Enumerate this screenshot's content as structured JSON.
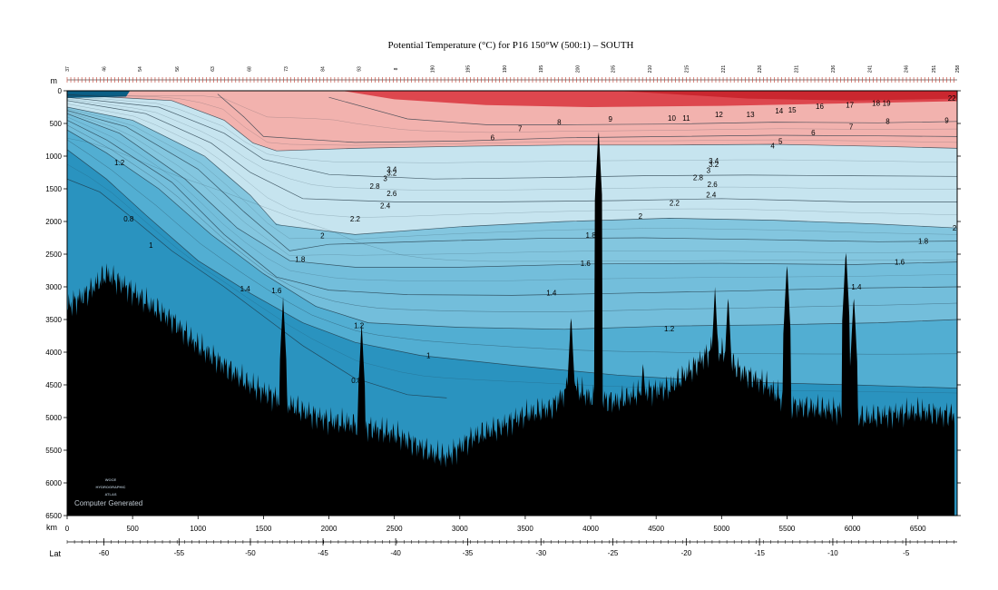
{
  "chart_data": {
    "type": "heatmap",
    "title": "Potential Temperature (°C) for P16 150°W (500:1) – SOUTH",
    "y_axis": {
      "unit_label": "m",
      "range": [
        0,
        6500
      ],
      "ticks": [
        0,
        500,
        1000,
        1500,
        2000,
        2500,
        3000,
        3500,
        4000,
        4500,
        5000,
        5500,
        6000,
        6500
      ],
      "inverted": true
    },
    "x_axis": {
      "unit_label": "km",
      "range": [
        0,
        6800
      ],
      "ticks": [
        0,
        500,
        1000,
        1500,
        2000,
        2500,
        3000,
        3500,
        4000,
        4500,
        5000,
        5500,
        6000,
        6500
      ]
    },
    "lat_axis": {
      "unit_label": "Lat",
      "ticks": [
        {
          "label": "-60",
          "km": 280
        },
        {
          "label": "-55",
          "km": 855
        },
        {
          "label": "-50",
          "km": 1400
        },
        {
          "label": "-45",
          "km": 1955
        },
        {
          "label": "-40",
          "km": 2510
        },
        {
          "label": "-35",
          "km": 3060
        },
        {
          "label": "-30",
          "km": 3620
        },
        {
          "label": "-25",
          "km": 4170
        },
        {
          "label": "-20",
          "km": 4730
        },
        {
          "label": "-15",
          "km": 5290
        },
        {
          "label": "-10",
          "km": 5850
        },
        {
          "label": "-5",
          "km": 6410
        }
      ]
    },
    "station_labels": [
      {
        "label": "37",
        "km": 0
      },
      {
        "label": "46",
        "km": 280
      },
      {
        "label": "54",
        "km": 555
      },
      {
        "label": "56",
        "km": 840
      },
      {
        "label": "63",
        "km": 1110
      },
      {
        "label": "68",
        "km": 1390
      },
      {
        "label": "73",
        "km": 1670
      },
      {
        "label": "84",
        "km": 1950
      },
      {
        "label": "93",
        "km": 2230
      },
      {
        "label": "8",
        "km": 2510
      },
      {
        "label": "190",
        "km": 2790
      },
      {
        "label": "195",
        "km": 3060
      },
      {
        "label": "190",
        "km": 3340
      },
      {
        "label": "195",
        "km": 3620
      },
      {
        "label": "200",
        "km": 3900
      },
      {
        "label": "205",
        "km": 4170
      },
      {
        "label": "210",
        "km": 4450
      },
      {
        "label": "215",
        "km": 4730
      },
      {
        "label": "221",
        "km": 5010
      },
      {
        "label": "226",
        "km": 5290
      },
      {
        "label": "231",
        "km": 5570
      },
      {
        "label": "236",
        "km": 5850
      },
      {
        "label": "241",
        "km": 6130
      },
      {
        "label": "246",
        "km": 6410
      },
      {
        "label": "251",
        "km": 6620
      },
      {
        "label": "258",
        "km": 6800
      }
    ],
    "legend": "none",
    "grid": false,
    "color_bands": [
      {
        "name": "warm >5",
        "color": "#f2b2ae"
      },
      {
        "name": "hot upper layer",
        "color": "#d9343d"
      },
      {
        "name": "2 to 5",
        "color": "#c6e4ef"
      },
      {
        "name": "1.6 to 2",
        "color": "#83c6df"
      },
      {
        "name": "1.2 to 1.6",
        "color": "#73bedb"
      },
      {
        "name": "1 to 1.2",
        "color": "#52aed2"
      },
      {
        "name": "<1",
        "color": "#2a93bf"
      },
      {
        "name": "bottom topography",
        "color": "#000000"
      }
    ],
    "contour_labels": [
      {
        "text": "22",
        "km": 6760,
        "depth": 150
      },
      {
        "text": "9",
        "km": 6720,
        "depth": 490
      },
      {
        "text": "8",
        "km": 6270,
        "depth": 510
      },
      {
        "text": "7",
        "km": 5990,
        "depth": 590
      },
      {
        "text": "6",
        "km": 5700,
        "depth": 680
      },
      {
        "text": "9",
        "km": 4150,
        "depth": 470
      },
      {
        "text": "10",
        "km": 4620,
        "depth": 460
      },
      {
        "text": "11",
        "km": 4730,
        "depth": 460
      },
      {
        "text": "12",
        "km": 4980,
        "depth": 400
      },
      {
        "text": "13",
        "km": 5220,
        "depth": 400
      },
      {
        "text": "14",
        "km": 5440,
        "depth": 350
      },
      {
        "text": "15",
        "km": 5540,
        "depth": 330
      },
      {
        "text": "16",
        "km": 5750,
        "depth": 280
      },
      {
        "text": "17",
        "km": 5980,
        "depth": 260
      },
      {
        "text": "18",
        "km": 6180,
        "depth": 230
      },
      {
        "text": "19",
        "km": 6260,
        "depth": 230
      },
      {
        "text": "8",
        "km": 3760,
        "depth": 520
      },
      {
        "text": "7",
        "km": 3460,
        "depth": 620
      },
      {
        "text": "6",
        "km": 3250,
        "depth": 760
      },
      {
        "text": "5",
        "km": 5450,
        "depth": 810
      },
      {
        "text": "4",
        "km": 5390,
        "depth": 880
      },
      {
        "text": "3.4",
        "km": 4940,
        "depth": 1110
      },
      {
        "text": "3.2",
        "km": 4940,
        "depth": 1170
      },
      {
        "text": "3",
        "km": 4900,
        "depth": 1260
      },
      {
        "text": "2.8",
        "km": 4820,
        "depth": 1370
      },
      {
        "text": "2.6",
        "km": 4930,
        "depth": 1470
      },
      {
        "text": "2.4",
        "km": 4920,
        "depth": 1630
      },
      {
        "text": "2.2",
        "km": 4640,
        "depth": 1760
      },
      {
        "text": "3.4",
        "km": 2480,
        "depth": 1240
      },
      {
        "text": "3.2",
        "km": 2480,
        "depth": 1300
      },
      {
        "text": "3",
        "km": 2430,
        "depth": 1380
      },
      {
        "text": "2.8",
        "km": 2350,
        "depth": 1500
      },
      {
        "text": "2.6",
        "km": 2480,
        "depth": 1610
      },
      {
        "text": "2.4",
        "km": 2430,
        "depth": 1800
      },
      {
        "text": "2.2",
        "km": 2200,
        "depth": 2000
      },
      {
        "text": "2",
        "km": 1950,
        "depth": 2260
      },
      {
        "text": "2",
        "km": 4380,
        "depth": 1960
      },
      {
        "text": "2",
        "km": 6780,
        "depth": 2140
      },
      {
        "text": "1.8",
        "km": 1780,
        "depth": 2620
      },
      {
        "text": "1.8",
        "km": 4000,
        "depth": 2250
      },
      {
        "text": "1.8",
        "km": 6540,
        "depth": 2340
      },
      {
        "text": "1.6",
        "km": 1600,
        "depth": 3100
      },
      {
        "text": "1.6",
        "km": 3960,
        "depth": 2680
      },
      {
        "text": "1.6",
        "km": 6360,
        "depth": 2660
      },
      {
        "text": "1.4",
        "km": 1360,
        "depth": 3070
      },
      {
        "text": "1.4",
        "km": 3700,
        "depth": 3130
      },
      {
        "text": "1.4",
        "km": 6030,
        "depth": 3040
      },
      {
        "text": "1.2",
        "km": 400,
        "depth": 1140
      },
      {
        "text": "1.2",
        "km": 2230,
        "depth": 3630
      },
      {
        "text": "1.2",
        "km": 4600,
        "depth": 3680
      },
      {
        "text": "1",
        "km": 640,
        "depth": 2400
      },
      {
        "text": "1",
        "km": 2760,
        "depth": 4090
      },
      {
        "text": "0.8",
        "km": 470,
        "depth": 2000
      },
      {
        "text": "0.8",
        "km": 2210,
        "depth": 4470
      }
    ],
    "contour_series": [
      {
        "value": 0.8,
        "depth": [
          [
            0,
            1350
          ],
          [
            250,
            1550
          ],
          [
            500,
            1950
          ],
          [
            800,
            2450
          ],
          [
            1200,
            3000
          ],
          [
            1500,
            3450
          ],
          [
            1800,
            3900
          ],
          [
            2200,
            4400
          ],
          [
            2600,
            4650
          ],
          [
            2900,
            4700
          ]
        ]
      },
      {
        "value": 1.0,
        "depth": [
          [
            0,
            900
          ],
          [
            300,
            1350
          ],
          [
            600,
            1900
          ],
          [
            1000,
            2600
          ],
          [
            1400,
            3100
          ],
          [
            1800,
            3550
          ],
          [
            2200,
            3850
          ],
          [
            2700,
            4050
          ],
          [
            3400,
            4200
          ],
          [
            4200,
            4350
          ],
          [
            5000,
            4450
          ],
          [
            6000,
            4500
          ],
          [
            6800,
            4550
          ]
        ]
      },
      {
        "value": 1.2,
        "depth": [
          [
            0,
            600
          ],
          [
            300,
            950
          ],
          [
            700,
            1500
          ],
          [
            1100,
            2200
          ],
          [
            1500,
            2800
          ],
          [
            1900,
            3300
          ],
          [
            2300,
            3550
          ],
          [
            3000,
            3620
          ],
          [
            3800,
            3650
          ],
          [
            4600,
            3600
          ],
          [
            5400,
            3580
          ],
          [
            6200,
            3550
          ],
          [
            6800,
            3500
          ]
        ]
      },
      {
        "value": 1.4,
        "depth": [
          [
            0,
            450
          ],
          [
            300,
            750
          ],
          [
            800,
            1400
          ],
          [
            1200,
            2200
          ],
          [
            1600,
            2850
          ],
          [
            2000,
            3050
          ],
          [
            2600,
            3120
          ],
          [
            3400,
            3130
          ],
          [
            4200,
            3100
          ],
          [
            5200,
            3060
          ],
          [
            6000,
            3020
          ],
          [
            6800,
            3000
          ]
        ]
      },
      {
        "value": 1.6,
        "depth": [
          [
            0,
            350
          ],
          [
            400,
            650
          ],
          [
            900,
            1350
          ],
          [
            1300,
            2100
          ],
          [
            1700,
            2600
          ],
          [
            2200,
            2700
          ],
          [
            3000,
            2700
          ],
          [
            4000,
            2650
          ],
          [
            5000,
            2640
          ],
          [
            6000,
            2660
          ],
          [
            6800,
            2620
          ]
        ]
      },
      {
        "value": 1.8,
        "depth": [
          [
            0,
            300
          ],
          [
            450,
            550
          ],
          [
            1000,
            1200
          ],
          [
            1350,
            1850
          ],
          [
            1700,
            2450
          ],
          [
            2000,
            2350
          ],
          [
            2800,
            2300
          ],
          [
            3600,
            2260
          ],
          [
            4400,
            2250
          ],
          [
            5400,
            2280
          ],
          [
            6200,
            2310
          ],
          [
            6800,
            2300
          ]
        ]
      },
      {
        "value": 2.0,
        "depth": [
          [
            0,
            250
          ],
          [
            500,
            450
          ],
          [
            1050,
            1000
          ],
          [
            1400,
            1600
          ],
          [
            1600,
            2050
          ],
          [
            2200,
            2200
          ],
          [
            3000,
            2080
          ],
          [
            3800,
            2000
          ],
          [
            4600,
            1950
          ],
          [
            5400,
            1980
          ],
          [
            6200,
            2040
          ],
          [
            6800,
            2100
          ]
        ]
      },
      {
        "value": 2.4,
        "depth": [
          [
            0,
            150
          ],
          [
            600,
            350
          ],
          [
            1100,
            800
          ],
          [
            1400,
            1250
          ],
          [
            1800,
            1650
          ],
          [
            2500,
            1700
          ],
          [
            3300,
            1700
          ],
          [
            4200,
            1680
          ],
          [
            5000,
            1650
          ],
          [
            6000,
            1700
          ],
          [
            6800,
            1700
          ]
        ]
      },
      {
        "value": 3.0,
        "depth": [
          [
            0,
            100
          ],
          [
            700,
            250
          ],
          [
            1200,
            650
          ],
          [
            1500,
            1050
          ],
          [
            2000,
            1280
          ],
          [
            2800,
            1350
          ],
          [
            3600,
            1330
          ],
          [
            4400,
            1300
          ],
          [
            5200,
            1290
          ],
          [
            6000,
            1300
          ],
          [
            6800,
            1310
          ]
        ]
      },
      {
        "value": 5.0,
        "depth": [
          [
            0,
            60
          ],
          [
            800,
            150
          ],
          [
            1200,
            450
          ],
          [
            1420,
            800
          ],
          [
            1600,
            920
          ],
          [
            2200,
            880
          ],
          [
            3000,
            850
          ],
          [
            3800,
            830
          ],
          [
            4600,
            830
          ],
          [
            5400,
            820
          ],
          [
            6200,
            850
          ],
          [
            6800,
            880
          ]
        ]
      },
      {
        "value": 6.0,
        "depth": [
          [
            1150,
            50
          ],
          [
            1350,
            400
          ],
          [
            1500,
            700
          ],
          [
            2200,
            790
          ],
          [
            3000,
            770
          ],
          [
            3800,
            720
          ],
          [
            4600,
            700
          ],
          [
            5400,
            680
          ],
          [
            6200,
            690
          ],
          [
            6800,
            700
          ]
        ]
      },
      {
        "value": 8.0,
        "depth": [
          [
            2000,
            100
          ],
          [
            2600,
            430
          ],
          [
            3200,
            520
          ],
          [
            3800,
            520
          ],
          [
            4600,
            510
          ],
          [
            5400,
            480
          ],
          [
            6200,
            490
          ],
          [
            6800,
            470
          ]
        ]
      }
    ]
  },
  "page": {
    "watermark_lines": [
      "WOCE",
      "HYDROGRAPHIC",
      "ATLAS"
    ],
    "credit": "Computer Generated"
  }
}
